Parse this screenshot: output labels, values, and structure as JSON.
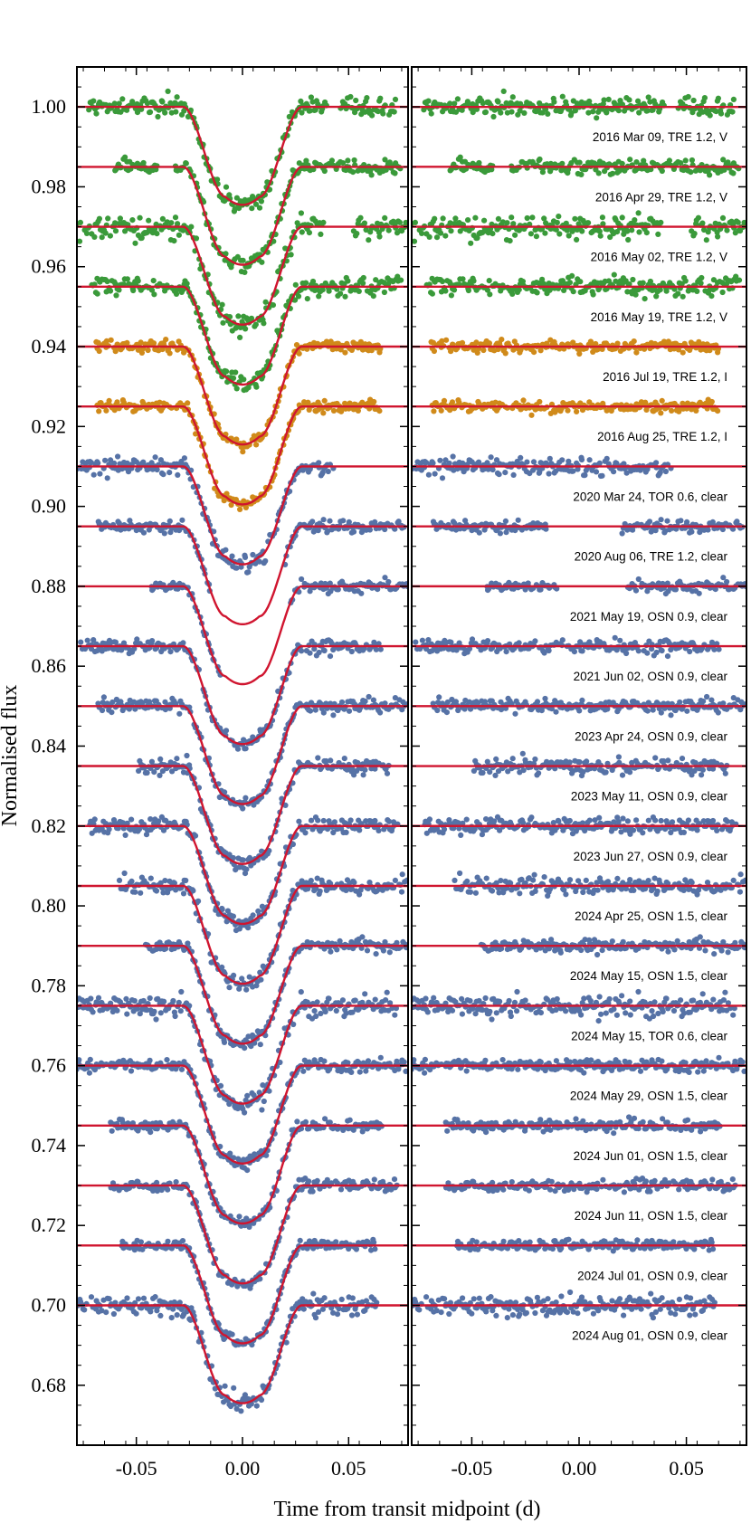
{
  "chart_data": {
    "type": "scatter",
    "xlabel": "Time from transit midpoint (d)",
    "ylabel": "Normalised flux",
    "xlim": [
      -0.078,
      0.078
    ],
    "ylim": [
      0.665,
      1.01
    ],
    "x_ticks": [
      -0.05,
      0.0,
      0.05
    ],
    "x_tick_labels": [
      "-0.05",
      "0.00",
      "0.05"
    ],
    "y_ticks": [
      0.68,
      0.7,
      0.72,
      0.74,
      0.76,
      0.78,
      0.8,
      0.82,
      0.84,
      0.86,
      0.88,
      0.9,
      0.92,
      0.94,
      0.96,
      0.98,
      1.0
    ],
    "y_tick_labels": [
      "0.68",
      "0.70",
      "0.72",
      "0.74",
      "0.76",
      "0.78",
      "0.80",
      "0.82",
      "0.84",
      "0.86",
      "0.88",
      "0.90",
      "0.92",
      "0.94",
      "0.96",
      "0.98",
      "1.00"
    ],
    "panels": [
      "light curves with transit model",
      "residuals"
    ],
    "model": {
      "transit_depth": 0.0245,
      "t_contact_1": -0.028,
      "t_contact_2": -0.008
    },
    "colors": {
      "V": "#3a9a3a",
      "I": "#d08a1a",
      "clear": "#5672a6",
      "model": "#d0152f"
    },
    "series": [
      {
        "label": "2016 Mar 09, TRE 1.2, V",
        "offset": 1.0,
        "color": "#3a9a3a",
        "x_range": [
          -0.073,
          0.072
        ],
        "scatter": 0.0011,
        "gap": [
          0.04,
          0.046
        ]
      },
      {
        "label": "2016 Apr 29, TRE 1.2, V",
        "offset": 0.985,
        "color": "#3a9a3a",
        "x_range": [
          -0.06,
          0.075
        ],
        "scatter": 0.0009,
        "gap": [
          -0.04,
          -0.032
        ]
      },
      {
        "label": "2016 May 02, TRE 1.2, V",
        "offset": 0.97,
        "color": "#3a9a3a",
        "x_range": [
          -0.078,
          0.078
        ],
        "scatter": 0.0014,
        "gap": [
          0.038,
          0.052
        ]
      },
      {
        "label": "2016 May 19, TRE 1.2, V",
        "offset": 0.955,
        "color": "#3a9a3a",
        "x_range": [
          -0.071,
          0.075
        ],
        "scatter": 0.0011,
        "gap": null
      },
      {
        "label": "2016 Jul 19, TRE 1.2, I",
        "offset": 0.94,
        "color": "#d08a1a",
        "x_range": [
          -0.069,
          0.065
        ],
        "scatter": 0.0007,
        "gap": null
      },
      {
        "label": "2016 Aug 25, TRE 1.2, I",
        "offset": 0.925,
        "color": "#d08a1a",
        "x_range": [
          -0.069,
          0.065
        ],
        "scatter": 0.0007,
        "gap": null
      },
      {
        "label": "2020 Mar 24, TOR 0.6, clear",
        "offset": 0.91,
        "color": "#5672a6",
        "x_range": [
          -0.078,
          0.043
        ],
        "scatter": 0.0011,
        "gap": null
      },
      {
        "label": "2020 Aug 06, TRE 1.2, clear",
        "offset": 0.895,
        "color": "#5672a6",
        "x_range": [
          -0.068,
          0.076
        ],
        "scatter": 0.0007,
        "gap": [
          -0.015,
          0.02
        ]
      },
      {
        "label": "2021 May 19, OSN 0.9, clear",
        "offset": 0.88,
        "color": "#5672a6",
        "x_range": [
          -0.043,
          0.078
        ],
        "scatter": 0.0007,
        "gap": [
          -0.01,
          0.022
        ]
      },
      {
        "label": "2021 Jun 02, OSN 0.9, clear",
        "offset": 0.865,
        "color": "#5672a6",
        "x_range": [
          -0.076,
          0.065
        ],
        "scatter": 0.0009,
        "gap": null
      },
      {
        "label": "2023 Apr 24, OSN 0.9, clear",
        "offset": 0.85,
        "color": "#5672a6",
        "x_range": [
          -0.068,
          0.078
        ],
        "scatter": 0.0008,
        "gap": null
      },
      {
        "label": "2023 May 11, OSN 0.9, clear",
        "offset": 0.835,
        "color": "#5672a6",
        "x_range": [
          -0.049,
          0.069
        ],
        "scatter": 0.001,
        "gap": null
      },
      {
        "label": "2023 Jun 27, OSN 0.9, clear",
        "offset": 0.82,
        "color": "#5672a6",
        "x_range": [
          -0.072,
          0.073
        ],
        "scatter": 0.0009,
        "gap": null
      },
      {
        "label": "2024 Apr 25, OSN 1.5, clear",
        "offset": 0.805,
        "color": "#5672a6",
        "x_range": [
          -0.058,
          0.078
        ],
        "scatter": 0.0012,
        "gap": null
      },
      {
        "label": "2024 May 15, OSN 1.5, clear",
        "offset": 0.79,
        "color": "#5672a6",
        "x_range": [
          -0.046,
          0.078
        ],
        "scatter": 0.0007,
        "gap": null
      },
      {
        "label": "2024 May 15, TOR 0.6, clear",
        "offset": 0.775,
        "color": "#5672a6",
        "x_range": [
          -0.078,
          0.073
        ],
        "scatter": 0.0013,
        "gap": null
      },
      {
        "label": "2024 May 29, OSN 1.5, clear",
        "offset": 0.76,
        "color": "#5672a6",
        "x_range": [
          -0.078,
          0.078
        ],
        "scatter": 0.0007,
        "gap": null
      },
      {
        "label": "2024 Jun 01, OSN 1.5, clear",
        "offset": 0.745,
        "color": "#5672a6",
        "x_range": [
          -0.062,
          0.066
        ],
        "scatter": 0.0007,
        "gap": null
      },
      {
        "label": "2024 Jun 11, OSN 1.5, clear",
        "offset": 0.73,
        "color": "#5672a6",
        "x_range": [
          -0.062,
          0.073
        ],
        "scatter": 0.0007,
        "gap": null
      },
      {
        "label": "2024 Jul 01, OSN 0.9, clear",
        "offset": 0.715,
        "color": "#5672a6",
        "x_range": [
          -0.057,
          0.063
        ],
        "scatter": 0.0007,
        "gap": null
      },
      {
        "label": "2024 Aug 01, OSN 0.9, clear",
        "offset": 0.7,
        "color": "#5672a6",
        "x_range": [
          -0.078,
          0.063
        ],
        "scatter": 0.0012,
        "gap": null
      }
    ]
  }
}
